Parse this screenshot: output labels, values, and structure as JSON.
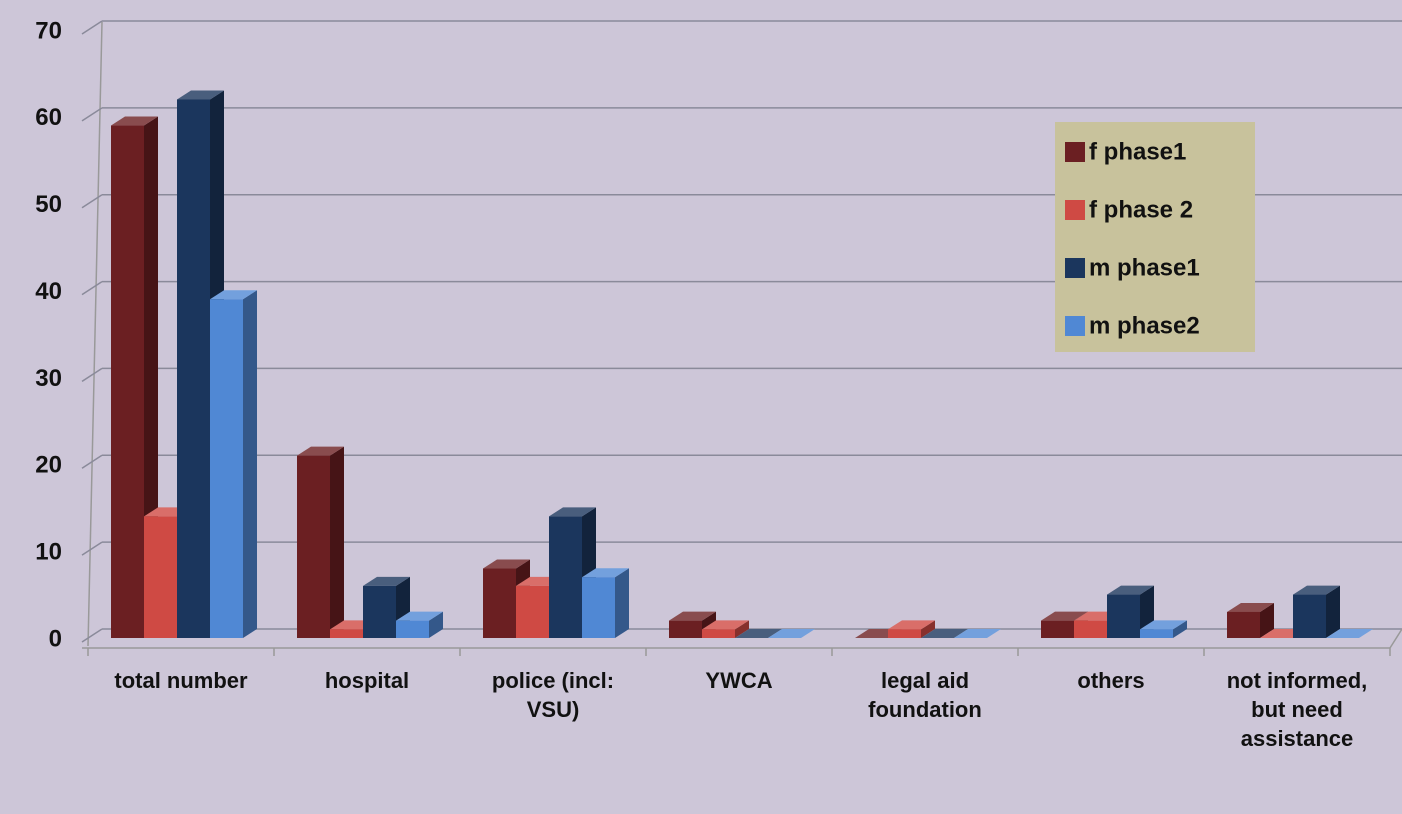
{
  "chart_data": {
    "type": "bar",
    "categories": [
      "total number",
      "hospital",
      "police (incl: VSU)",
      "YWCA",
      "legal aid foundation",
      "others",
      "not informed, but need assistance"
    ],
    "series": [
      {
        "name": "f phase1",
        "color": "#6b1f22",
        "values": [
          59,
          21,
          8,
          2,
          0,
          2,
          3
        ]
      },
      {
        "name": "f phase 2",
        "color": "#cf4a44",
        "values": [
          14,
          1,
          6,
          1,
          1,
          2,
          0
        ]
      },
      {
        "name": "m phase1",
        "color": "#1b365d",
        "values": [
          62,
          6,
          14,
          0,
          0,
          5,
          5
        ]
      },
      {
        "name": "m phase2",
        "color": "#5088d4",
        "values": [
          39,
          2,
          7,
          0,
          0,
          1,
          0
        ]
      }
    ],
    "ylim": [
      0,
      70
    ],
    "yticks": [
      0,
      10,
      20,
      30,
      40,
      50,
      60,
      70
    ],
    "grid": true,
    "legend": "upper right"
  }
}
